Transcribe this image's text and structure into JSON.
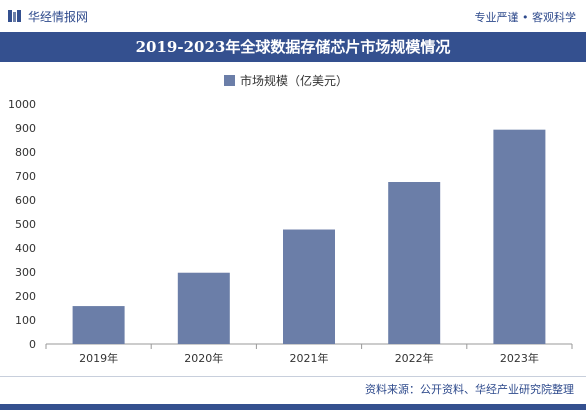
{
  "header": {
    "brand": "华经情报网",
    "tagline": "专业严谨 • 客观科学"
  },
  "title": "2019-2023年全球数据存储芯片市场规模情况",
  "colors": {
    "accent": "#34508f",
    "bar": "#6b7ea8",
    "text": "#2e4a8c"
  },
  "source": "资料来源：公开资料、华经产业研究院整理",
  "chart_data": {
    "type": "bar",
    "categories": [
      "2019年",
      "2020年",
      "2021年",
      "2022年",
      "2023年"
    ],
    "series": [
      {
        "name": "市场规模（亿美元）",
        "values": [
          158,
          297,
          477,
          675,
          893
        ]
      }
    ],
    "title": "2019-2023年全球数据存储芯片市场规模情况",
    "xlabel": "",
    "ylabel": "",
    "ylim": [
      0,
      1000
    ],
    "yticks": [
      0,
      100,
      200,
      300,
      400,
      500,
      600,
      700,
      800,
      900,
      1000
    ],
    "grid": false,
    "legend": "top-center"
  }
}
